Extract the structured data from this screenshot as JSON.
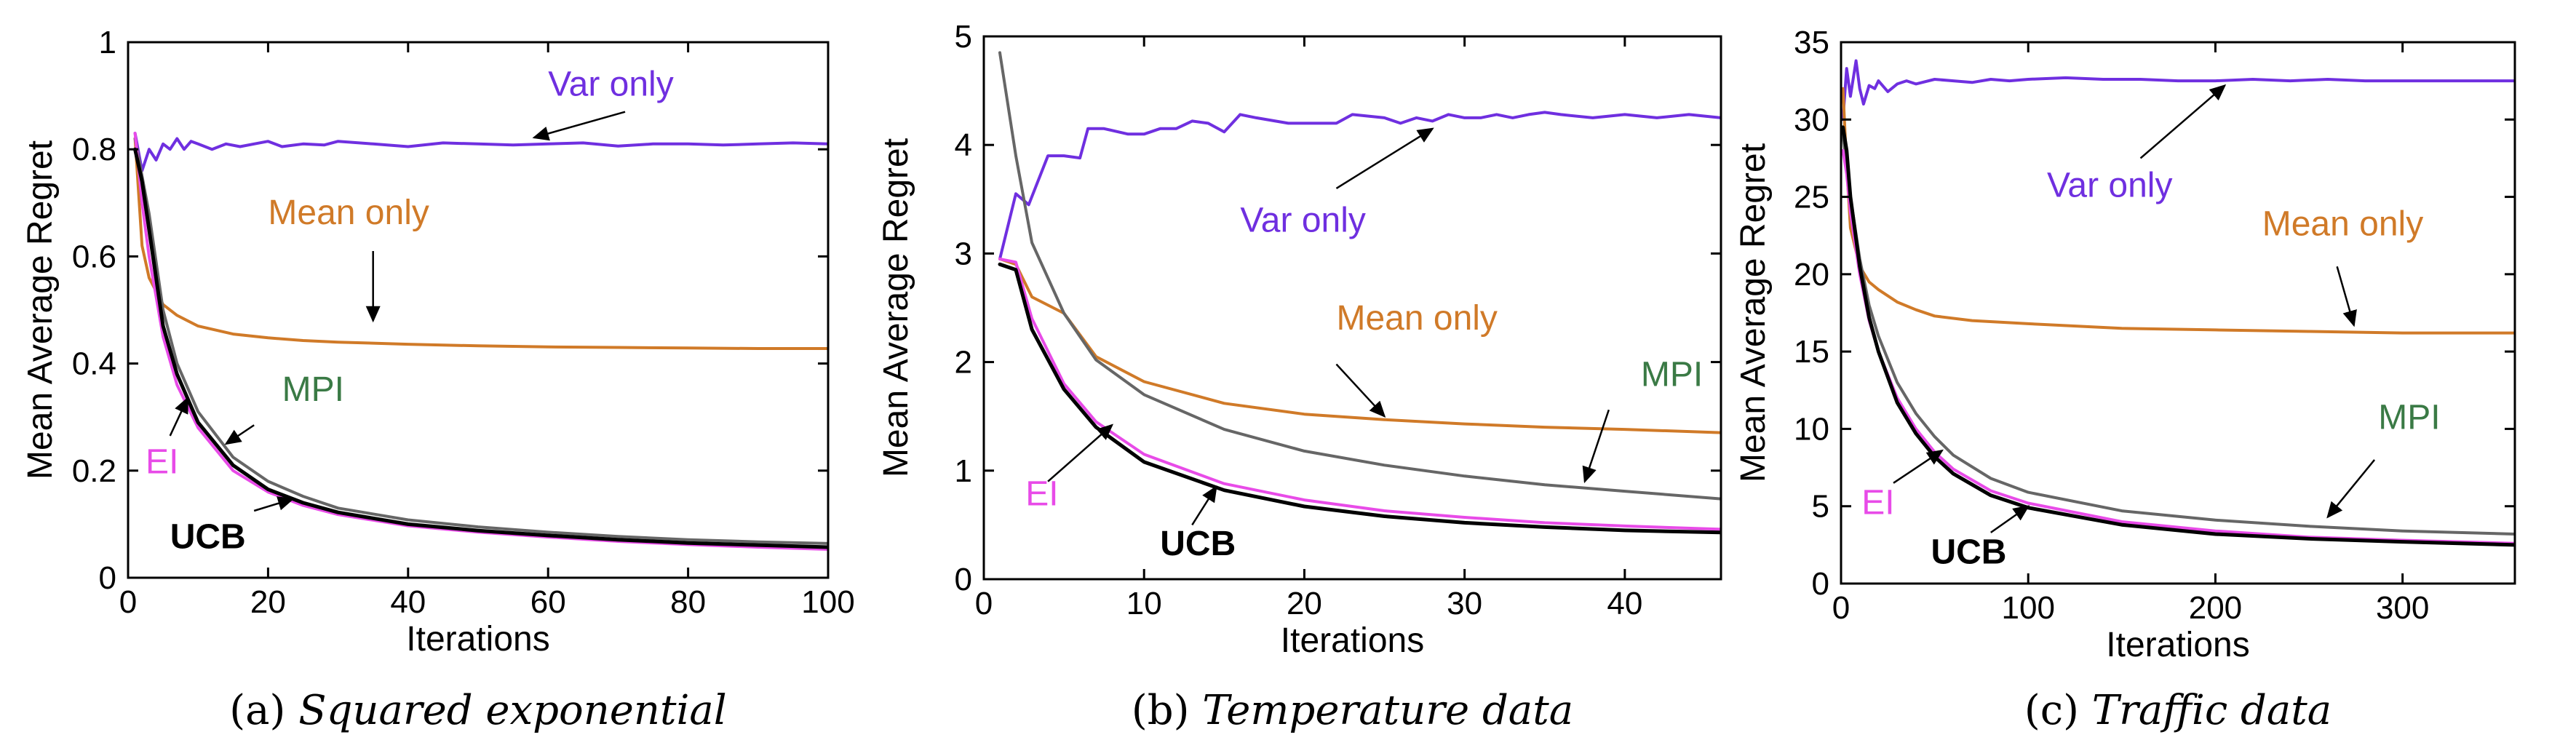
{
  "chart_data": [
    {
      "type": "line",
      "caption_prefix": "(a)",
      "caption_text": "Squared exponential",
      "xlabel": "Iterations",
      "ylabel": "Mean Average Regret",
      "xlim": [
        0,
        100
      ],
      "ylim": [
        0,
        1
      ],
      "xticks": [
        0,
        20,
        40,
        60,
        80,
        100
      ],
      "yticks": [
        0,
        0.2,
        0.4,
        0.6,
        0.8,
        1
      ],
      "ytick_labels": [
        "0",
        "0.2",
        "0.4",
        "0.6",
        "0.8",
        "1"
      ],
      "series": [
        {
          "key": "var",
          "name": "Var only",
          "color": "#6f2fe0",
          "width": 4,
          "x": [
            1,
            2,
            3,
            4,
            5,
            6,
            7,
            8,
            9,
            10,
            12,
            14,
            16,
            18,
            20,
            22,
            25,
            28,
            30,
            35,
            40,
            45,
            50,
            55,
            60,
            65,
            70,
            75,
            80,
            85,
            90,
            95,
            100
          ],
          "y": [
            0.83,
            0.76,
            0.8,
            0.78,
            0.81,
            0.8,
            0.82,
            0.8,
            0.815,
            0.81,
            0.8,
            0.81,
            0.805,
            0.81,
            0.815,
            0.805,
            0.81,
            0.808,
            0.815,
            0.81,
            0.805,
            0.812,
            0.81,
            0.808,
            0.81,
            0.812,
            0.806,
            0.81,
            0.81,
            0.808,
            0.81,
            0.812,
            0.81
          ]
        },
        {
          "key": "mean",
          "name": "Mean only",
          "color": "#d07a28",
          "width": 4,
          "x": [
            1,
            2,
            3,
            5,
            7,
            10,
            15,
            20,
            25,
            30,
            40,
            50,
            60,
            70,
            80,
            90,
            100
          ],
          "y": [
            0.82,
            0.62,
            0.56,
            0.51,
            0.49,
            0.47,
            0.455,
            0.448,
            0.443,
            0.44,
            0.436,
            0.433,
            0.431,
            0.43,
            0.429,
            0.428,
            0.428
          ]
        },
        {
          "key": "mpi",
          "name": "MPI",
          "color": "#666666",
          "width": 4,
          "x": [
            1,
            2,
            3,
            5,
            7,
            10,
            15,
            20,
            25,
            30,
            40,
            50,
            60,
            70,
            80,
            90,
            100
          ],
          "y": [
            0.82,
            0.75,
            0.68,
            0.5,
            0.4,
            0.31,
            0.225,
            0.18,
            0.152,
            0.13,
            0.108,
            0.095,
            0.085,
            0.077,
            0.071,
            0.067,
            0.064
          ]
        },
        {
          "key": "ei",
          "name": "EI",
          "color": "#e84be8",
          "width": 4,
          "x": [
            1,
            2,
            3,
            5,
            7,
            10,
            15,
            20,
            25,
            30,
            40,
            50,
            60,
            70,
            80,
            90,
            100
          ],
          "y": [
            0.83,
            0.7,
            0.6,
            0.45,
            0.36,
            0.28,
            0.2,
            0.16,
            0.135,
            0.118,
            0.097,
            0.085,
            0.076,
            0.068,
            0.062,
            0.057,
            0.053
          ]
        },
        {
          "key": "ucb",
          "name": "UCB",
          "color": "#000000",
          "width": 5,
          "x": [
            1,
            2,
            3,
            5,
            7,
            10,
            15,
            20,
            25,
            30,
            40,
            50,
            60,
            70,
            80,
            90,
            100
          ],
          "y": [
            0.8,
            0.74,
            0.65,
            0.47,
            0.38,
            0.29,
            0.21,
            0.165,
            0.14,
            0.122,
            0.1,
            0.088,
            0.079,
            0.071,
            0.065,
            0.061,
            0.057
          ]
        }
      ],
      "annotations": [
        {
          "text": "Var only",
          "color": "#6f2fe0",
          "bold": false,
          "tx": 60,
          "ty": 0.9,
          "ax": 71,
          "ay": 0.87,
          "hx": 58,
          "hy": 0.822
        },
        {
          "text": "Mean only",
          "color": "#d07a28",
          "bold": false,
          "tx": 20,
          "ty": 0.66,
          "ax": 35,
          "ay": 0.61,
          "hx": 35,
          "hy": 0.48
        },
        {
          "text": "MPI",
          "color": "#3a7a45",
          "bold": false,
          "tx": 22,
          "ty": 0.33,
          "ax": 18,
          "ay": 0.285,
          "hx": 14,
          "hy": 0.25
        },
        {
          "text": "EI",
          "color": "#e84be8",
          "bold": false,
          "tx": 2.5,
          "ty": 0.195,
          "ax": 6,
          "ay": 0.265,
          "hx": 8.5,
          "hy": 0.335
        },
        {
          "text": "UCB",
          "color": "#000000",
          "bold": true,
          "tx": 6,
          "ty": 0.055,
          "ax": 18,
          "ay": 0.125,
          "hx": 23.5,
          "hy": 0.147
        }
      ]
    },
    {
      "type": "line",
      "caption_prefix": "(b)",
      "caption_text": "Temperature data",
      "xlabel": "Iterations",
      "ylabel": "Mean Average Regret",
      "xlim": [
        0,
        46
      ],
      "ylim": [
        0,
        5
      ],
      "xticks": [
        0,
        10,
        20,
        30,
        40
      ],
      "yticks": [
        0,
        1,
        2,
        3,
        4,
        5
      ],
      "ytick_labels": [
        "0",
        "1",
        "2",
        "3",
        "4",
        "5"
      ],
      "series": [
        {
          "key": "var",
          "name": "Var only",
          "color": "#6f2fe0",
          "width": 4,
          "x": [
            1,
            2,
            2.8,
            4,
            5,
            6,
            6.5,
            7.5,
            9,
            10,
            11,
            12,
            13,
            14,
            15,
            16,
            17,
            19,
            21,
            22,
            23,
            25,
            26,
            27,
            28,
            29,
            30,
            31,
            32,
            33,
            34,
            35,
            36,
            38,
            40,
            42,
            44,
            46
          ],
          "y": [
            2.95,
            3.55,
            3.45,
            3.9,
            3.9,
            3.88,
            4.15,
            4.15,
            4.1,
            4.1,
            4.15,
            4.15,
            4.22,
            4.2,
            4.12,
            4.28,
            4.25,
            4.2,
            4.2,
            4.2,
            4.28,
            4.25,
            4.2,
            4.25,
            4.22,
            4.28,
            4.25,
            4.25,
            4.28,
            4.25,
            4.28,
            4.3,
            4.28,
            4.25,
            4.28,
            4.25,
            4.28,
            4.25
          ]
        },
        {
          "key": "mean",
          "name": "Mean only",
          "color": "#d07a28",
          "width": 4,
          "x": [
            1,
            2,
            3,
            5,
            7,
            10,
            15,
            20,
            25,
            30,
            35,
            40,
            46
          ],
          "y": [
            2.95,
            2.9,
            2.6,
            2.45,
            2.05,
            1.82,
            1.62,
            1.52,
            1.47,
            1.43,
            1.4,
            1.38,
            1.35
          ]
        },
        {
          "key": "mpi",
          "name": "MPI",
          "color": "#666666",
          "width": 4,
          "x": [
            1,
            2,
            3,
            5,
            7,
            10,
            15,
            20,
            25,
            30,
            35,
            40,
            46
          ],
          "y": [
            4.85,
            3.9,
            3.1,
            2.45,
            2.02,
            1.7,
            1.38,
            1.18,
            1.05,
            0.95,
            0.87,
            0.81,
            0.74
          ]
        },
        {
          "key": "ei",
          "name": "EI",
          "color": "#e84be8",
          "width": 4,
          "x": [
            1,
            2,
            3,
            5,
            7,
            10,
            15,
            20,
            25,
            30,
            35,
            40,
            46
          ],
          "y": [
            2.95,
            2.92,
            2.4,
            1.8,
            1.45,
            1.15,
            0.88,
            0.73,
            0.63,
            0.57,
            0.52,
            0.49,
            0.46
          ]
        },
        {
          "key": "ucb",
          "name": "UCB",
          "color": "#000000",
          "width": 5,
          "x": [
            1,
            2,
            3,
            5,
            7,
            10,
            15,
            20,
            25,
            30,
            35,
            40,
            46
          ],
          "y": [
            2.9,
            2.85,
            2.3,
            1.75,
            1.4,
            1.08,
            0.82,
            0.67,
            0.58,
            0.52,
            0.48,
            0.45,
            0.43
          ]
        }
      ],
      "annotations": [
        {
          "text": "Var only",
          "color": "#6f2fe0",
          "bold": false,
          "tx": 16,
          "ty": 3.2,
          "ax": 22,
          "ay": 3.6,
          "hx": 28,
          "hy": 4.15
        },
        {
          "text": "Mean only",
          "color": "#d07a28",
          "bold": false,
          "tx": 22,
          "ty": 2.3,
          "ax": 22,
          "ay": 1.98,
          "hx": 25,
          "hy": 1.5
        },
        {
          "text": "MPI",
          "color": "#3a7a45",
          "bold": false,
          "tx": 41,
          "ty": 1.78,
          "ax": 39,
          "ay": 1.56,
          "hx": 37.5,
          "hy": 0.9
        },
        {
          "text": "EI",
          "color": "#e84be8",
          "bold": false,
          "tx": 2.6,
          "ty": 0.68,
          "ax": 4,
          "ay": 0.9,
          "hx": 8,
          "hy": 1.42
        },
        {
          "text": "UCB",
          "color": "#000000",
          "bold": true,
          "tx": 11,
          "ty": 0.22,
          "ax": 13,
          "ay": 0.5,
          "hx": 14.5,
          "hy": 0.85
        }
      ]
    },
    {
      "type": "line",
      "caption_prefix": "(c)",
      "caption_text": "Traffic data",
      "xlabel": "Iterations",
      "ylabel": "Mean Average Regret",
      "xlim": [
        0,
        360
      ],
      "ylim": [
        0,
        35
      ],
      "xticks": [
        0,
        100,
        200,
        300
      ],
      "yticks": [
        0,
        5,
        10,
        15,
        20,
        25,
        30,
        35
      ],
      "ytick_labels": [
        "0",
        "5",
        "10",
        "15",
        "20",
        "25",
        "30",
        "35"
      ],
      "series": [
        {
          "key": "var",
          "name": "Var only",
          "color": "#6f2fe0",
          "width": 4,
          "x": [
            1,
            3,
            5,
            8,
            10,
            12,
            15,
            18,
            20,
            25,
            30,
            35,
            40,
            50,
            60,
            70,
            80,
            90,
            100,
            120,
            140,
            160,
            180,
            200,
            220,
            240,
            260,
            280,
            300,
            320,
            340,
            360
          ],
          "y": [
            30,
            33.3,
            31.5,
            33.8,
            32,
            31,
            32.2,
            32,
            32.5,
            31.8,
            32.3,
            32.5,
            32.3,
            32.6,
            32.5,
            32.4,
            32.6,
            32.5,
            32.6,
            32.7,
            32.6,
            32.6,
            32.5,
            32.5,
            32.6,
            32.5,
            32.6,
            32.5,
            32.5,
            32.5,
            32.5,
            32.5
          ]
        },
        {
          "key": "mean",
          "name": "Mean only",
          "color": "#d07a28",
          "width": 4,
          "x": [
            1,
            3,
            5,
            10,
            15,
            20,
            30,
            40,
            50,
            70,
            100,
            150,
            200,
            250,
            300,
            360
          ],
          "y": [
            32,
            27,
            23,
            20.5,
            19.5,
            19,
            18.2,
            17.7,
            17.3,
            17,
            16.8,
            16.5,
            16.4,
            16.3,
            16.2,
            16.2
          ]
        },
        {
          "key": "mpi",
          "name": "MPI",
          "color": "#666666",
          "width": 4,
          "x": [
            1,
            3,
            5,
            10,
            15,
            20,
            30,
            40,
            50,
            60,
            80,
            100,
            150,
            200,
            250,
            300,
            360
          ],
          "y": [
            29,
            27,
            25,
            21,
            18,
            16,
            13,
            11,
            9.5,
            8.3,
            6.8,
            5.9,
            4.7,
            4.1,
            3.7,
            3.4,
            3.2
          ]
        },
        {
          "key": "ei",
          "name": "EI",
          "color": "#e84be8",
          "width": 4,
          "x": [
            1,
            3,
            5,
            10,
            15,
            20,
            30,
            40,
            50,
            60,
            80,
            100,
            150,
            200,
            250,
            300,
            360
          ],
          "y": [
            28,
            26.5,
            24,
            20,
            17,
            15,
            12,
            10,
            8.5,
            7.4,
            6,
            5.2,
            4,
            3.4,
            3,
            2.8,
            2.6
          ]
        },
        {
          "key": "ucb",
          "name": "UCB",
          "color": "#000000",
          "width": 5,
          "x": [
            1,
            3,
            5,
            10,
            15,
            20,
            30,
            40,
            50,
            60,
            80,
            100,
            150,
            200,
            250,
            300,
            360
          ],
          "y": [
            29.5,
            28,
            25,
            20.5,
            17.2,
            15,
            11.7,
            9.7,
            8.2,
            7.1,
            5.7,
            4.9,
            3.8,
            3.2,
            2.9,
            2.7,
            2.5
          ]
        }
      ],
      "annotations": [
        {
          "text": "Var only",
          "color": "#6f2fe0",
          "bold": false,
          "tx": 110,
          "ty": 25,
          "ax": 160,
          "ay": 27.5,
          "hx": 205,
          "hy": 32.2
        },
        {
          "text": "Mean only",
          "color": "#d07a28",
          "bold": false,
          "tx": 225,
          "ty": 22.5,
          "ax": 265,
          "ay": 20.5,
          "hx": 274,
          "hy": 16.7
        },
        {
          "text": "MPI",
          "color": "#3a7a45",
          "bold": false,
          "tx": 287,
          "ty": 10,
          "ax": 285,
          "ay": 8,
          "hx": 260,
          "hy": 4.3
        },
        {
          "text": "EI",
          "color": "#e84be8",
          "bold": false,
          "tx": 11,
          "ty": 4.5,
          "ax": 28,
          "ay": 6.5,
          "hx": 54,
          "hy": 8.6
        },
        {
          "text": "UCB",
          "color": "#000000",
          "bold": true,
          "tx": 48,
          "ty": 1.3,
          "ax": 80,
          "ay": 3.3,
          "hx": 100,
          "hy": 5
        }
      ]
    }
  ]
}
